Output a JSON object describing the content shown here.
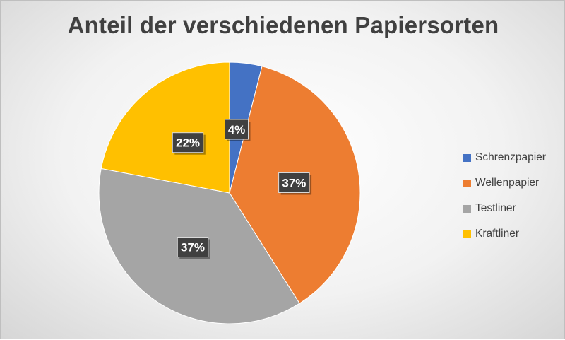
{
  "chart_data": {
    "type": "pie",
    "title": "Anteil der verschiedenen Papiersorten",
    "categories": [
      "Schrenzpapier",
      "Wellenpapier",
      "Testliner",
      "Kraftliner"
    ],
    "values": [
      4,
      37,
      37,
      22
    ],
    "labels": [
      "4%",
      "37%",
      "37%",
      "22%"
    ],
    "colors": [
      "#4472c4",
      "#ed7d31",
      "#a5a5a5",
      "#ffc000"
    ],
    "legend_position": "right"
  }
}
